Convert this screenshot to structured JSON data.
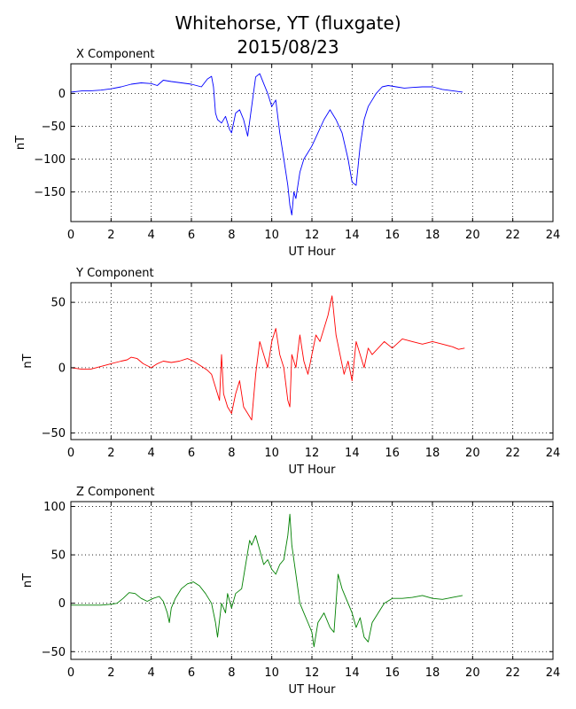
{
  "figure": {
    "title_line1": "Whitehorse, YT (fluxgate)",
    "title_line2": "2015/08/23"
  },
  "chart_data": [
    {
      "type": "line",
      "title": "X Component",
      "xlabel": "UT Hour",
      "ylabel": "nT",
      "xlim": [
        0,
        24
      ],
      "ylim": [
        -195,
        45
      ],
      "xticks": [
        0,
        2,
        4,
        6,
        8,
        10,
        12,
        14,
        16,
        18,
        20,
        22,
        24
      ],
      "yticks": [
        0,
        -50,
        -100,
        -150
      ],
      "grid": true,
      "color": "#0000ff",
      "series": [
        {
          "x": [
            0,
            0.3,
            0.6,
            1,
            1.5,
            2,
            2.5,
            3,
            3.5,
            4,
            4.3,
            4.6,
            5,
            5.5,
            6,
            6.5,
            6.8,
            7,
            7.1,
            7.2,
            7.3,
            7.5,
            7.7,
            7.9,
            8.0,
            8.2,
            8.4,
            8.6,
            8.8,
            9.0,
            9.2,
            9.4,
            9.6,
            9.8,
            10.0,
            10.2,
            10.4,
            10.6,
            10.8,
            10.9,
            11.0,
            11.1,
            11.2,
            11.4,
            11.6,
            11.8,
            12.0,
            12.3,
            12.6,
            12.9,
            13.2,
            13.5,
            13.8,
            14.0,
            14.2,
            14.4,
            14.6,
            14.8,
            15.0,
            15.2,
            15.5,
            15.8,
            16.2,
            16.6,
            17.0,
            17.5,
            18.0,
            18.5,
            19.0,
            19.5
          ],
          "y": [
            2,
            3,
            4,
            4,
            5,
            7,
            10,
            14,
            16,
            15,
            12,
            20,
            18,
            16,
            14,
            10,
            22,
            26,
            10,
            -30,
            -40,
            -45,
            -35,
            -55,
            -60,
            -30,
            -25,
            -40,
            -65,
            -20,
            25,
            30,
            15,
            0,
            -20,
            -10,
            -60,
            -100,
            -140,
            -170,
            -185,
            -150,
            -160,
            -120,
            -100,
            -90,
            -80,
            -60,
            -40,
            -25,
            -40,
            -60,
            -100,
            -135,
            -140,
            -80,
            -40,
            -20,
            -10,
            0,
            10,
            12,
            10,
            8,
            9,
            10,
            10,
            6,
            4,
            2
          ]
        }
      ]
    },
    {
      "type": "line",
      "title": "Y Component",
      "xlabel": "UT Hour",
      "ylabel": "nT",
      "xlim": [
        0,
        24
      ],
      "ylim": [
        -55,
        65
      ],
      "xticks": [
        0,
        2,
        4,
        6,
        8,
        10,
        12,
        14,
        16,
        18,
        20,
        22,
        24
      ],
      "yticks": [
        50,
        0,
        -50
      ],
      "grid": true,
      "color": "#ff0000",
      "series": [
        {
          "x": [
            0,
            0.5,
            1,
            1.5,
            2,
            2.5,
            2.8,
            3.0,
            3.3,
            3.6,
            4.0,
            4.3,
            4.6,
            5.0,
            5.4,
            5.8,
            6.1,
            6.4,
            6.8,
            7.0,
            7.2,
            7.4,
            7.5,
            7.6,
            7.8,
            8.0,
            8.2,
            8.4,
            8.6,
            8.8,
            9.0,
            9.2,
            9.4,
            9.6,
            9.8,
            10.0,
            10.2,
            10.4,
            10.6,
            10.8,
            10.9,
            11.0,
            11.2,
            11.4,
            11.6,
            11.8,
            12.0,
            12.2,
            12.4,
            12.6,
            12.8,
            13.0,
            13.2,
            13.4,
            13.6,
            13.8,
            14.0,
            14.2,
            14.4,
            14.6,
            14.8,
            15.0,
            15.3,
            15.6,
            16.0,
            16.5,
            17.0,
            17.5,
            18.0,
            18.5,
            19.0,
            19.3,
            19.6
          ],
          "y": [
            0,
            -1,
            -1,
            1,
            3,
            5,
            6,
            8,
            7,
            3,
            0,
            3,
            5,
            4,
            5,
            7,
            5,
            2,
            -2,
            -5,
            -15,
            -25,
            10,
            -20,
            -30,
            -35,
            -20,
            -10,
            -30,
            -35,
            -40,
            -5,
            20,
            10,
            0,
            20,
            30,
            10,
            0,
            -25,
            -30,
            10,
            0,
            25,
            5,
            -5,
            10,
            25,
            20,
            30,
            40,
            55,
            25,
            10,
            -5,
            5,
            -10,
            20,
            10,
            0,
            15,
            10,
            15,
            20,
            15,
            22,
            20,
            18,
            20,
            18,
            16,
            14,
            15
          ]
        }
      ]
    },
    {
      "type": "line",
      "title": "Z Component",
      "xlabel": "UT Hour",
      "ylabel": "nT",
      "xlim": [
        0,
        24
      ],
      "ylim": [
        -58,
        105
      ],
      "xticks": [
        0,
        2,
        4,
        6,
        8,
        10,
        12,
        14,
        16,
        18,
        20,
        22,
        24
      ],
      "yticks": [
        100,
        50,
        0,
        -50
      ],
      "grid": true,
      "color": "#008000",
      "series": [
        {
          "x": [
            0,
            0.5,
            1,
            1.5,
            2,
            2.3,
            2.6,
            2.9,
            3.2,
            3.5,
            3.8,
            4.1,
            4.4,
            4.6,
            4.8,
            4.9,
            5.0,
            5.2,
            5.5,
            5.8,
            6.1,
            6.4,
            6.7,
            7.0,
            7.2,
            7.3,
            7.5,
            7.7,
            7.8,
            8.0,
            8.2,
            8.5,
            8.7,
            8.9,
            9.0,
            9.2,
            9.4,
            9.6,
            9.8,
            10.0,
            10.2,
            10.4,
            10.6,
            10.8,
            10.9,
            11.0,
            11.2,
            11.4,
            11.6,
            11.8,
            12.0,
            12.1,
            12.3,
            12.6,
            12.9,
            13.1,
            13.3,
            13.5,
            13.8,
            14.0,
            14.2,
            14.4,
            14.6,
            14.8,
            15.0,
            15.3,
            15.6,
            16.0,
            16.5,
            17.0,
            17.5,
            18.0,
            18.5,
            19.0,
            19.5
          ],
          "y": [
            -2,
            -2,
            -2,
            -2,
            -1,
            0,
            5,
            11,
            10,
            5,
            2,
            5,
            7,
            2,
            -10,
            -20,
            -5,
            5,
            15,
            20,
            22,
            18,
            10,
            0,
            -20,
            -35,
            0,
            -10,
            10,
            -5,
            10,
            15,
            40,
            65,
            60,
            70,
            55,
            40,
            45,
            35,
            30,
            40,
            45,
            70,
            92,
            60,
            30,
            0,
            -10,
            -20,
            -30,
            -45,
            -20,
            -10,
            -25,
            -30,
            30,
            15,
            0,
            -10,
            -25,
            -15,
            -35,
            -40,
            -20,
            -10,
            0,
            5,
            5,
            6,
            8,
            5,
            4,
            6,
            8
          ]
        }
      ]
    }
  ]
}
